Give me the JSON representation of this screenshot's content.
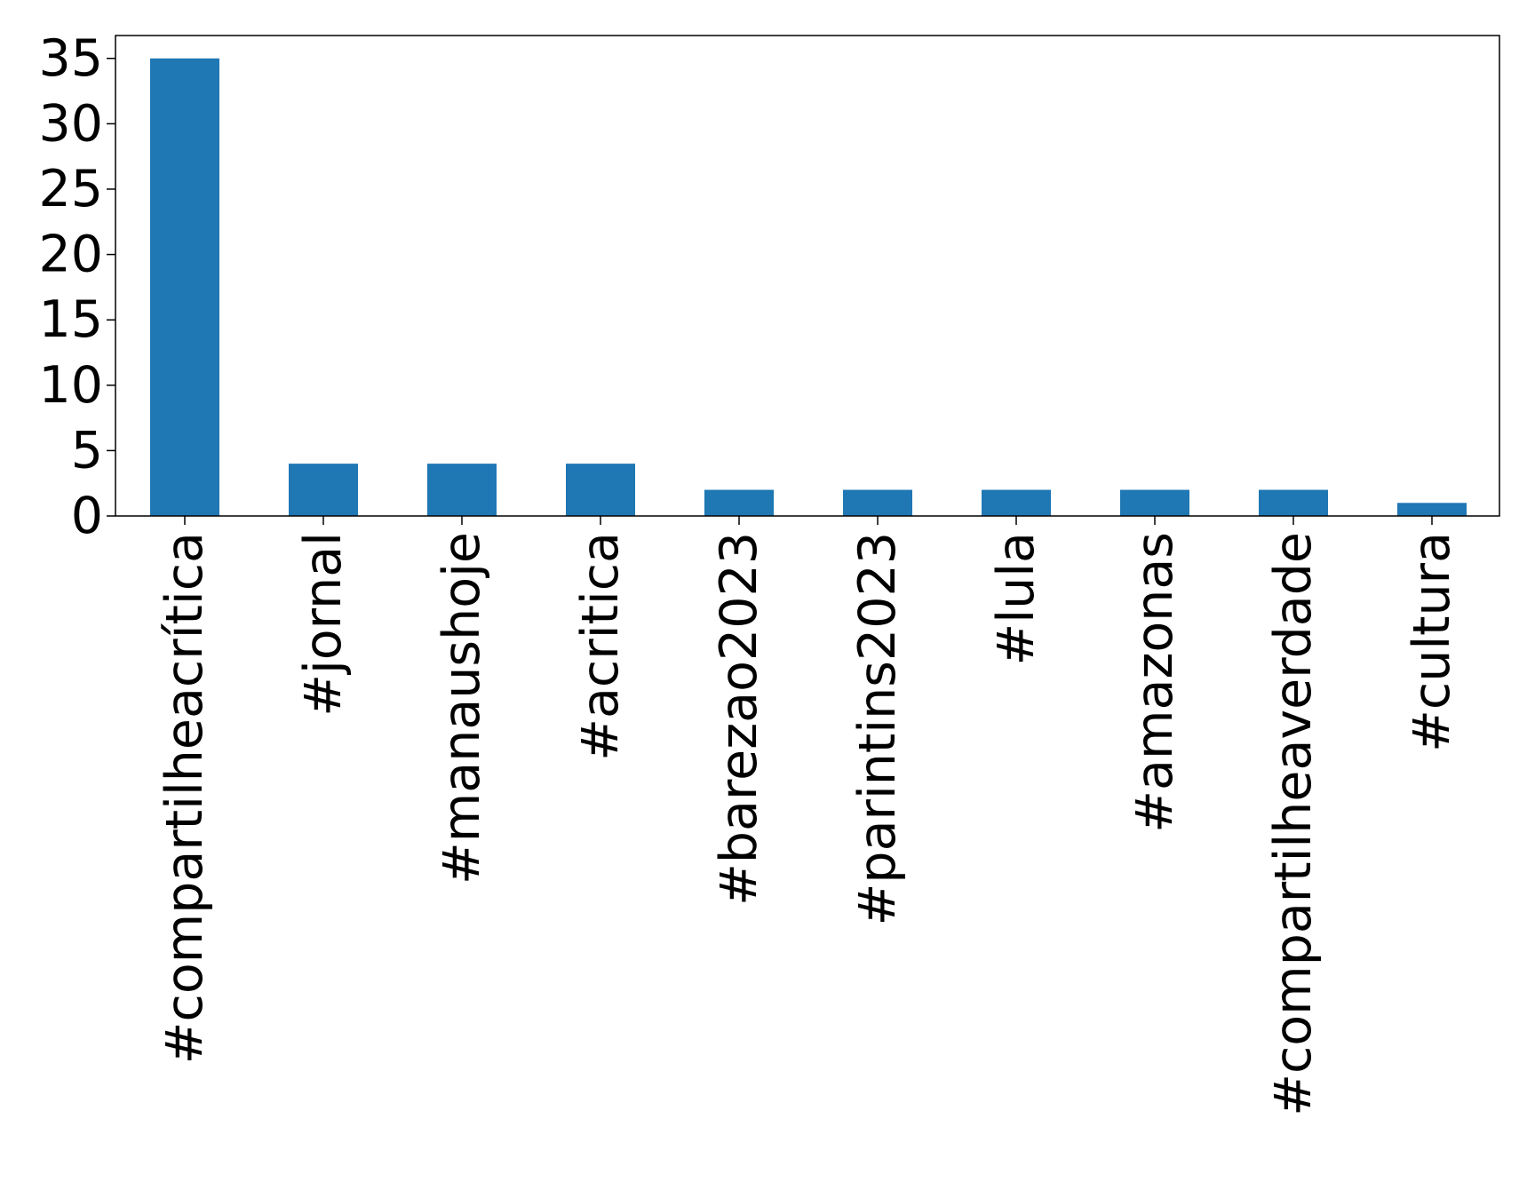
{
  "chart_data": {
    "type": "bar",
    "categories": [
      "#compartilheacrítica",
      "#jornal",
      "#manaushoje",
      "#acritica",
      "#barezao2023",
      "#parintins2023",
      "#lula",
      "#amazonas",
      "#compartilheaverdade",
      "#cultura"
    ],
    "values": [
      35,
      4,
      4,
      4,
      2,
      2,
      2,
      2,
      2,
      1
    ],
    "yticks": [
      0,
      5,
      10,
      15,
      20,
      25,
      30,
      35
    ],
    "ylim": [
      0,
      36.75
    ],
    "bar_color": "#1f77b4",
    "title": "",
    "xlabel": "",
    "ylabel": "",
    "grid": false,
    "legend": "none",
    "x_tick_rotation": "vertical"
  }
}
